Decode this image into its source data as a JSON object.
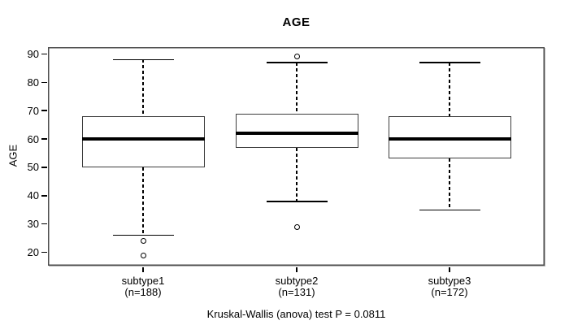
{
  "chart_data": {
    "type": "boxplot",
    "title": "AGE",
    "ylabel": "AGE",
    "xlabel": "",
    "ylim": [
      15.3,
      92.4
    ],
    "yticks": [
      20,
      30,
      40,
      50,
      60,
      70,
      80,
      90
    ],
    "grid": false,
    "legend": null,
    "footnote": "Kruskal-Wallis (anova) test P = 0.0811",
    "groups": [
      {
        "label": "subtype1",
        "sublabel": "(n=188)",
        "n": 188,
        "whisker_low": 26,
        "q1": 50,
        "median": 60,
        "q3": 68,
        "whisker_high": 88,
        "outliers": [
          24,
          19
        ]
      },
      {
        "label": "subtype2",
        "sublabel": "(n=131)",
        "n": 131,
        "whisker_low": 38,
        "q1": 57,
        "median": 62,
        "q3": 69,
        "whisker_high": 87,
        "outliers": [
          89,
          29
        ]
      },
      {
        "label": "subtype3",
        "sublabel": "(n=172)",
        "n": 172,
        "whisker_low": 35,
        "q1": 53,
        "median": 60,
        "q3": 68,
        "whisker_high": 87,
        "outliers": []
      }
    ],
    "colors": {
      "background": "#ffffff",
      "axis": "#4d4d4d",
      "box_border": "#3d3d3d",
      "median": "#000000",
      "whisker": "#000000",
      "text": "#000000"
    }
  }
}
